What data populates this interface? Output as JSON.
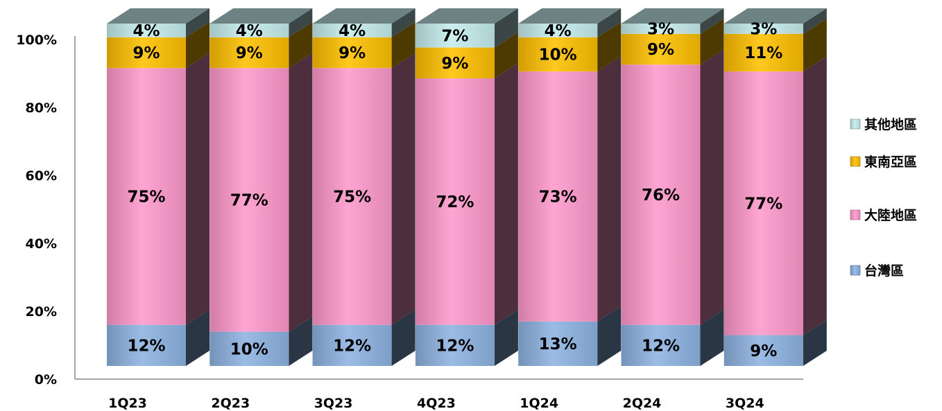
{
  "chart_data": {
    "type": "bar",
    "stacked": true,
    "percent_stacked": true,
    "three_d": true,
    "categories": [
      "1Q23",
      "2Q23",
      "3Q23",
      "4Q23",
      "1Q24",
      "2Q24",
      "3Q24"
    ],
    "series": [
      {
        "name": "台灣區",
        "values": [
          12,
          10,
          12,
          12,
          13,
          12,
          9
        ],
        "labels": [
          "12%",
          "10%",
          "12%",
          "12%",
          "13%",
          "12%",
          "9%"
        ],
        "color": "#8db3e2"
      },
      {
        "name": "大陸地區",
        "values": [
          75,
          77,
          75,
          72,
          73,
          76,
          77
        ],
        "labels": [
          "75%",
          "77%",
          "75%",
          "72%",
          "73%",
          "76%",
          "77%"
        ],
        "color": "#ff99cc"
      },
      {
        "name": "東南亞區",
        "values": [
          9,
          9,
          9,
          9,
          10,
          9,
          11
        ],
        "labels": [
          "9%",
          "9%",
          "9%",
          "9%",
          "10%",
          "9%",
          "11%"
        ],
        "color": "#ffc000"
      },
      {
        "name": "其他地區",
        "values": [
          4,
          4,
          4,
          7,
          4,
          3,
          3
        ],
        "labels": [
          "4%",
          "4%",
          "4%",
          "7%",
          "4%",
          "3%",
          "3%"
        ],
        "color": "#c6eded"
      }
    ],
    "y_ticks": [
      "0%",
      "20%",
      "40%",
      "60%",
      "80%",
      "100%"
    ],
    "ylim": [
      0,
      100
    ],
    "legend_position": "right",
    "grid": false
  }
}
